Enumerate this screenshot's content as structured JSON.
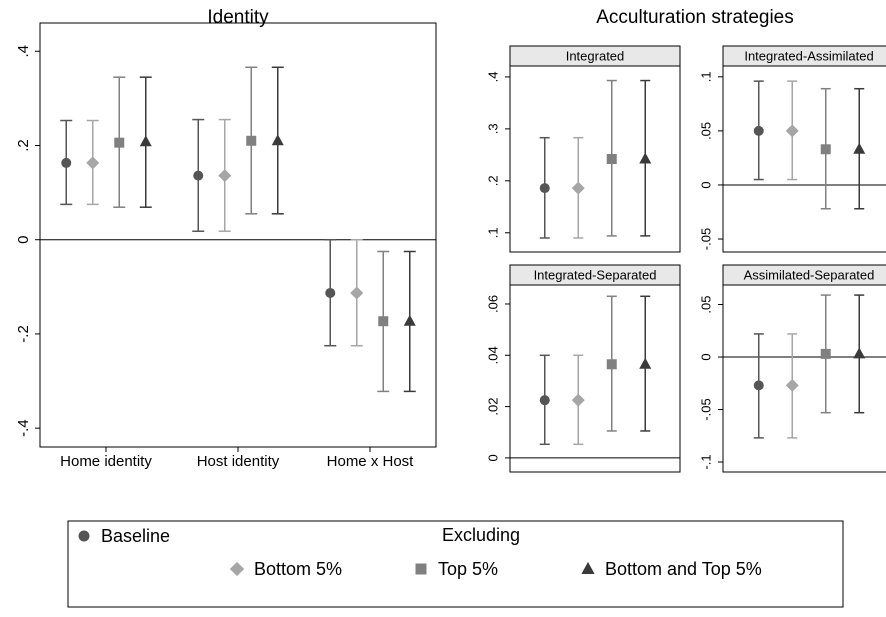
{
  "suptitle": "Acculturation strategies",
  "legend": {
    "heading": "Excluding"
  },
  "chart_data": [
    {
      "type": "errorbar",
      "title": "Identity",
      "hline": 0,
      "categories": [
        "Home identity",
        "Host identity",
        "Home x Host"
      ],
      "ylim": [
        -0.44,
        0.46
      ],
      "yticks": [
        {
          "value": 0.4,
          "label": ".4"
        },
        {
          "value": 0.2,
          "label": ".2"
        },
        0,
        {
          "value": -0.2,
          "label": "-.2"
        },
        {
          "value": -0.4,
          "label": "-.4"
        }
      ],
      "series": [
        {
          "name": "Baseline",
          "color": "#555555",
          "marker": "circle",
          "values": [
            0.163,
            0.136,
            -0.113
          ],
          "lower": [
            0.075,
            0.018,
            -0.225
          ],
          "upper": [
            0.253,
            0.255,
            0
          ]
        },
        {
          "name": "Bottom 5%",
          "color": "#a6a6a6",
          "marker": "diamond",
          "values": [
            0.163,
            0.136,
            -0.113
          ],
          "lower": [
            0.075,
            0.018,
            -0.225
          ],
          "upper": [
            0.253,
            0.255,
            0
          ]
        },
        {
          "name": "Top 5%",
          "color": "#808080",
          "marker": "square",
          "values": [
            0.206,
            0.21,
            -0.173
          ],
          "lower": [
            0.069,
            0.055,
            -0.322
          ],
          "upper": [
            0.345,
            0.366,
            -0.025
          ]
        },
        {
          "name": "Bottom and Top 5%",
          "color": "#3a3a3a",
          "marker": "triangle",
          "values": [
            0.208,
            0.21,
            -0.173
          ],
          "lower": [
            0.069,
            0.055,
            -0.322
          ],
          "upper": [
            0.345,
            0.366,
            -0.025
          ]
        }
      ]
    },
    {
      "type": "errorbar",
      "title": "Integrated",
      "hline": 0,
      "categories": [
        null
      ],
      "ylim": [
        0.063,
        0.421
      ],
      "yticks": [
        {
          "value": 0.1,
          "label": ".1"
        },
        {
          "value": 0.2,
          "label": ".2"
        },
        {
          "value": 0.3,
          "label": ".3"
        },
        {
          "value": 0.4,
          "label": ".4"
        }
      ],
      "series": [
        {
          "color": "#555555",
          "marker": "circle",
          "values": [
            0.186
          ],
          "lower": [
            0.09
          ],
          "upper": [
            0.283
          ]
        },
        {
          "color": "#a6a6a6",
          "marker": "diamond",
          "values": [
            0.186
          ],
          "lower": [
            0.09
          ],
          "upper": [
            0.283
          ]
        },
        {
          "color": "#808080",
          "marker": "square",
          "values": [
            0.242
          ],
          "lower": [
            0.094
          ],
          "upper": [
            0.393
          ]
        },
        {
          "color": "#3a3a3a",
          "marker": "triangle",
          "values": [
            0.242
          ],
          "lower": [
            0.094
          ],
          "upper": [
            0.393
          ]
        }
      ]
    },
    {
      "type": "errorbar",
      "title": "Integrated-Assimilated",
      "hline": 0,
      "categories": [
        null
      ],
      "ylim": [
        -0.062,
        0.11
      ],
      "yticks": [
        {
          "value": -0.05,
          "label": "-.05"
        },
        0,
        {
          "value": 0.05,
          "label": ".05"
        },
        {
          "value": 0.1,
          "label": ".1"
        }
      ],
      "series": [
        {
          "color": "#555555",
          "marker": "circle",
          "values": [
            0.05
          ],
          "lower": [
            0.005
          ],
          "upper": [
            0.096
          ]
        },
        {
          "color": "#a6a6a6",
          "marker": "diamond",
          "values": [
            0.05
          ],
          "lower": [
            0.005
          ],
          "upper": [
            0.096
          ]
        },
        {
          "color": "#808080",
          "marker": "square",
          "values": [
            0.033
          ],
          "lower": [
            -0.022
          ],
          "upper": [
            0.089
          ]
        },
        {
          "color": "#3a3a3a",
          "marker": "triangle",
          "values": [
            0.033
          ],
          "lower": [
            -0.022
          ],
          "upper": [
            0.089
          ]
        }
      ]
    },
    {
      "type": "errorbar",
      "title": "Integrated-Separated",
      "hline": 0,
      "categories": [
        null
      ],
      "ylim": [
        -0.0055,
        0.0674
      ],
      "yticks": [
        0,
        {
          "value": 0.02,
          "label": ".02"
        },
        {
          "value": 0.04,
          "label": ".04"
        },
        {
          "value": 0.06,
          "label": ".06"
        }
      ],
      "series": [
        {
          "color": "#555555",
          "marker": "circle",
          "values": [
            0.0225
          ],
          "lower": [
            0.0053
          ],
          "upper": [
            0.04
          ]
        },
        {
          "color": "#a6a6a6",
          "marker": "diamond",
          "values": [
            0.0225
          ],
          "lower": [
            0.0053
          ],
          "upper": [
            0.04
          ]
        },
        {
          "color": "#808080",
          "marker": "square",
          "values": [
            0.0365
          ],
          "lower": [
            0.0105
          ],
          "upper": [
            0.063
          ]
        },
        {
          "color": "#3a3a3a",
          "marker": "triangle",
          "values": [
            0.0365
          ],
          "lower": [
            0.0105
          ],
          "upper": [
            0.063
          ]
        }
      ]
    },
    {
      "type": "errorbar",
      "title": "Assimilated-Separated",
      "hline": 0,
      "categories": [
        null
      ],
      "ylim": [
        -0.1095,
        0.0686
      ],
      "yticks": [
        {
          "value": -0.1,
          "label": "-.1"
        },
        {
          "value": -0.05,
          "label": "-.05"
        },
        0,
        {
          "value": 0.05,
          "label": ".05"
        }
      ],
      "series": [
        {
          "color": "#555555",
          "marker": "circle",
          "values": [
            -0.027
          ],
          "lower": [
            -0.077
          ],
          "upper": [
            0.022
          ]
        },
        {
          "color": "#a6a6a6",
          "marker": "diamond",
          "values": [
            -0.027
          ],
          "lower": [
            -0.077
          ],
          "upper": [
            0.022
          ]
        },
        {
          "color": "#808080",
          "marker": "square",
          "values": [
            0.003
          ],
          "lower": [
            -0.053
          ],
          "upper": [
            0.059
          ]
        },
        {
          "color": "#3a3a3a",
          "marker": "triangle",
          "values": [
            0.003
          ],
          "lower": [
            -0.053
          ],
          "upper": [
            0.059
          ]
        }
      ]
    }
  ]
}
